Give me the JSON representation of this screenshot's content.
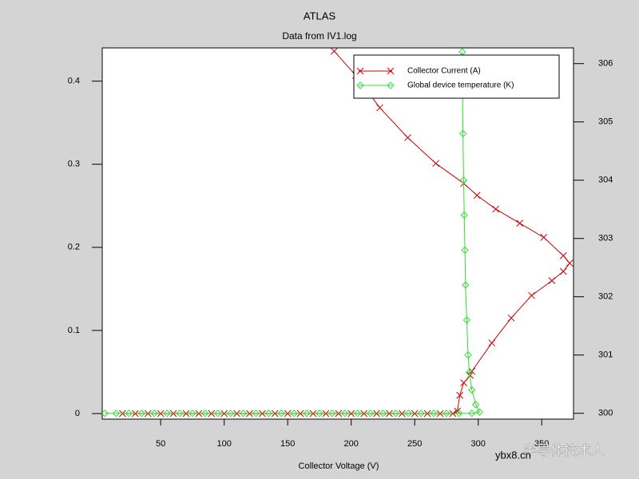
{
  "chart_data": {
    "type": "line",
    "title": "ATLAS",
    "subtitle": "Data from IV1.log",
    "x_label": "Collector Voltage (V)",
    "xlim": [
      4,
      375
    ],
    "xticks": [
      50,
      100,
      150,
      200,
      250,
      300,
      350
    ],
    "ylim": [
      -0.0067,
      0.44
    ],
    "yticks": [
      0,
      0.1,
      0.2,
      0.3,
      0.4
    ],
    "y2lim": [
      299.9,
      306.27
    ],
    "y2ticks": [
      300,
      301,
      302,
      303,
      304,
      305,
      306
    ],
    "legend": "upper right",
    "series": [
      {
        "name": "Collector Current (A)",
        "color": "#cc0000",
        "marker": "x",
        "x": [
          20,
          30,
          40,
          50,
          60,
          70,
          80,
          90,
          100,
          110,
          120,
          130,
          140,
          150,
          160,
          170,
          180,
          190,
          200,
          210,
          220,
          230,
          240,
          250,
          260,
          270,
          280,
          283.6,
          285.5,
          288.6,
          293.7,
          295,
          310.7,
          326,
          342,
          358,
          367,
          372,
          367,
          351.6,
          332.7,
          313.8,
          299,
          288.6,
          266.6,
          244.5,
          222.5,
          203.6,
          186.6
        ],
        "values": [
          0,
          0,
          0,
          0,
          0,
          0,
          0,
          0,
          0,
          0,
          0,
          0,
          0,
          0,
          0,
          0,
          0,
          0,
          0,
          0,
          0,
          0,
          0,
          0,
          0,
          0,
          0,
          0.003,
          0.022,
          0.037,
          0.046,
          0.051,
          0.085,
          0.115,
          0.142,
          0.16,
          0.171,
          0.181,
          0.19,
          0.212,
          0.229,
          0.246,
          0.2625,
          0.277,
          0.301,
          0.332,
          0.368,
          0.407,
          0.436
        ]
      },
      {
        "name": "Global device temperature (K)",
        "color": "#33dd33",
        "marker": "diamond",
        "axis": "y2",
        "x": [
          6,
          15,
          25,
          35,
          45,
          55,
          65,
          75,
          85,
          95,
          105,
          115,
          125,
          135,
          145,
          155,
          165,
          175,
          185,
          195,
          205,
          215,
          225,
          235,
          245,
          255,
          265,
          275,
          285,
          295,
          301,
          298,
          295,
          293,
          292,
          291,
          290,
          289.5,
          289,
          288.5,
          288,
          287.7,
          287.4
        ],
        "values": [
          300,
          300,
          300,
          300,
          300,
          300,
          300,
          300,
          300,
          300,
          300,
          300,
          300,
          300,
          300,
          300,
          300,
          300,
          300,
          300,
          300,
          300,
          300,
          300,
          300,
          300,
          300,
          300,
          300,
          300,
          300.02,
          300.15,
          300.4,
          300.7,
          301,
          301.6,
          302.2,
          302.8,
          303.4,
          304,
          304.8,
          305.5,
          306.2
        ]
      }
    ],
    "watermark": [
      "半导体技术人",
      "ybx8.cn"
    ]
  }
}
